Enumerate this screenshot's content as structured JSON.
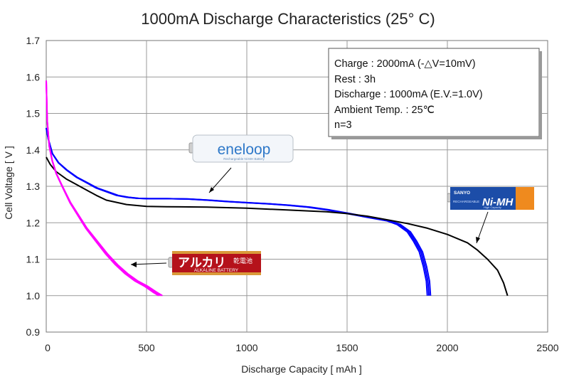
{
  "chart_data": {
    "type": "line",
    "title": "1000mA Discharge Characteristics (25°  C)",
    "xlabel": "Discharge Capacity [ mAh ]",
    "ylabel": "Cell Voltage [ V ]",
    "xlim": [
      0,
      2500
    ],
    "ylim": [
      0.9,
      1.7
    ],
    "xticks": [
      "0",
      "500",
      "1000",
      "1500",
      "2000",
      "2500"
    ],
    "yticks": [
      "0.9",
      "1.0",
      "1.1",
      "1.2",
      "1.3",
      "1.4",
      "1.5",
      "1.6",
      "1.7"
    ],
    "grid": true,
    "annotation_box": {
      "lines": [
        "Charge : 2000mA (-△V=10mV)",
        "Rest : 3h",
        "Discharge : 1000mA (E.V.=1.0V)",
        "Ambient Temp. : 25℃",
        "n=3"
      ],
      "placement": "top-right"
    },
    "series": [
      {
        "color": "#0000ff",
        "label_image": "eneloop battery",
        "image_text": [
          "eneloop",
          "Rechargeable Ni-MH Battery"
        ],
        "points": [
          [
            0,
            1.46
          ],
          [
            10,
            1.43
          ],
          [
            30,
            1.39
          ],
          [
            60,
            1.365
          ],
          [
            100,
            1.345
          ],
          [
            150,
            1.325
          ],
          [
            200,
            1.31
          ],
          [
            250,
            1.295
          ],
          [
            300,
            1.285
          ],
          [
            350,
            1.275
          ],
          [
            400,
            1.27
          ],
          [
            450,
            1.267
          ],
          [
            500,
            1.266
          ],
          [
            600,
            1.266
          ],
          [
            700,
            1.265
          ],
          [
            800,
            1.262
          ],
          [
            900,
            1.258
          ],
          [
            1000,
            1.255
          ],
          [
            1100,
            1.252
          ],
          [
            1200,
            1.248
          ],
          [
            1300,
            1.243
          ],
          [
            1400,
            1.235
          ],
          [
            1500,
            1.225
          ],
          [
            1600,
            1.215
          ],
          [
            1700,
            1.205
          ],
          [
            1750,
            1.195
          ],
          [
            1800,
            1.175
          ],
          [
            1830,
            1.15
          ],
          [
            1860,
            1.12
          ],
          [
            1880,
            1.08
          ],
          [
            1895,
            1.04
          ],
          [
            1900,
            1.0
          ]
        ],
        "offsets": [
          0,
          8,
          16
        ]
      },
      {
        "color": "#000000",
        "label_image": "SANYO Ni-MH battery",
        "image_text": [
          "SANYO",
          "Ni-MH",
          "RECHARGEABLE",
          "High Capacity"
        ],
        "points": [
          [
            0,
            1.38
          ],
          [
            20,
            1.36
          ],
          [
            50,
            1.34
          ],
          [
            100,
            1.32
          ],
          [
            150,
            1.305
          ],
          [
            200,
            1.29
          ],
          [
            250,
            1.275
          ],
          [
            300,
            1.262
          ],
          [
            400,
            1.25
          ],
          [
            500,
            1.245
          ],
          [
            600,
            1.244
          ],
          [
            800,
            1.243
          ],
          [
            1000,
            1.24
          ],
          [
            1200,
            1.235
          ],
          [
            1400,
            1.23
          ],
          [
            1500,
            1.225
          ],
          [
            1600,
            1.218
          ],
          [
            1700,
            1.208
          ],
          [
            1800,
            1.198
          ],
          [
            1900,
            1.185
          ],
          [
            2000,
            1.168
          ],
          [
            2100,
            1.145
          ],
          [
            2150,
            1.125
          ],
          [
            2200,
            1.1
          ],
          [
            2250,
            1.07
          ],
          [
            2280,
            1.035
          ],
          [
            2300,
            1.0
          ]
        ],
        "offsets": [
          0
        ]
      },
      {
        "color": "#ff00ff",
        "label_image": "alkaline battery",
        "image_text": [
          "アルカリ",
          "乾電池",
          "ALKALINE BATTERY"
        ],
        "points": [
          [
            0,
            1.59
          ],
          [
            5,
            1.48
          ],
          [
            15,
            1.41
          ],
          [
            30,
            1.37
          ],
          [
            50,
            1.335
          ],
          [
            80,
            1.3
          ],
          [
            120,
            1.255
          ],
          [
            160,
            1.22
          ],
          [
            200,
            1.185
          ],
          [
            250,
            1.15
          ],
          [
            300,
            1.115
          ],
          [
            350,
            1.085
          ],
          [
            400,
            1.06
          ],
          [
            450,
            1.04
          ],
          [
            500,
            1.025
          ],
          [
            540,
            1.01
          ],
          [
            570,
            1.0
          ]
        ],
        "offsets": [
          0,
          -10,
          10
        ]
      }
    ]
  }
}
